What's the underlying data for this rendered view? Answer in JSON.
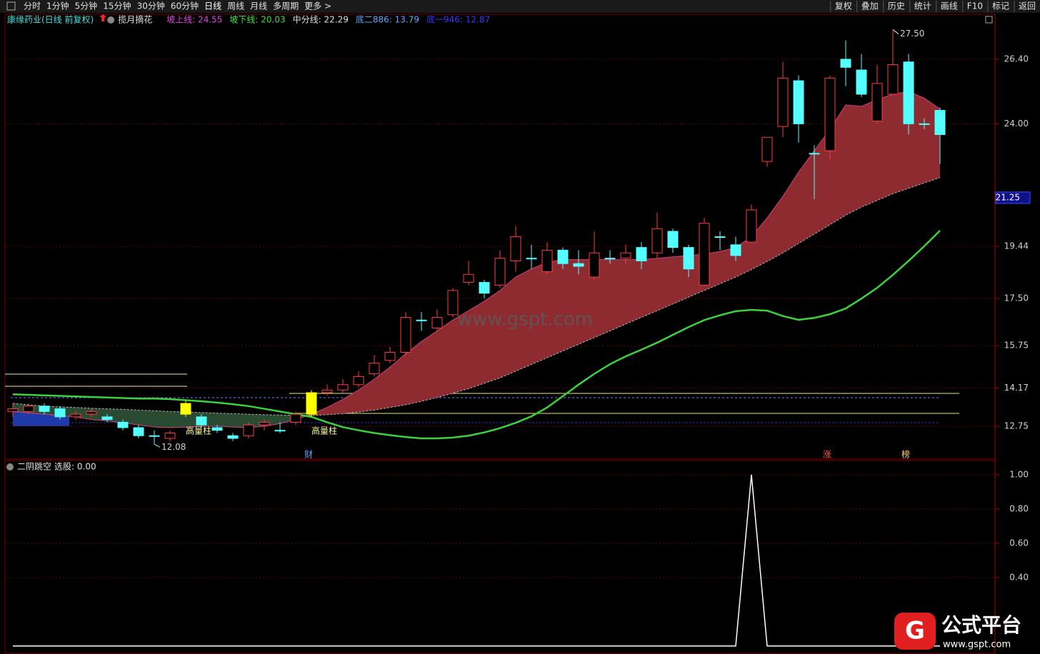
{
  "toolbar": {
    "left": [
      "分时",
      "1分钟",
      "5分钟",
      "15分钟",
      "30分钟",
      "60分钟",
      "日线",
      "周线",
      "月线",
      "多周期",
      "更多 >"
    ],
    "right": [
      "复权",
      "叠加",
      "历史",
      "统计",
      "画线",
      "F10",
      "标记",
      "返回"
    ]
  },
  "header": {
    "stock": "康缘药业(日线 前复权)",
    "formula": "揽月摘花",
    "readouts": [
      {
        "text": "坡上线: 24.55",
        "color": "#e040e0"
      },
      {
        "text": "坡下线: 20.03",
        "color": "#40e040"
      },
      {
        "text": "中分线: 22.29",
        "color": "#e0e0e0"
      },
      {
        "text": "底二886: 13.79",
        "color": "#60a8ff"
      },
      {
        "text": "底一946: 12.87",
        "color": "#3838ff"
      }
    ]
  },
  "watermark": "www.gspt.com",
  "logo": {
    "title": "公式平台",
    "url": "www.gspt.com"
  },
  "chart_data": [
    {
      "type": "candlestick",
      "up_color": "#ff3c3c",
      "down_color": "#54ffff",
      "highlight_color": "#ffff00",
      "band_colors": {
        "up": "#8e2b30",
        "down": "#2b4a32"
      },
      "open": [
        13.3,
        13.3,
        13.5,
        13.4,
        13.1,
        13.2,
        13.1,
        12.9,
        12.7,
        12.4,
        12.3,
        13.2,
        13.1,
        12.7,
        12.4,
        12.4,
        12.8,
        12.6,
        12.9,
        13.2,
        14.0,
        14.1,
        14.3,
        14.7,
        15.2,
        15.5,
        16.7,
        16.4,
        16.9,
        18.1,
        18.1,
        18.0,
        18.9,
        19.0,
        18.5,
        19.3,
        18.8,
        18.3,
        19.0,
        19.0,
        19.4,
        19.2,
        20.0,
        19.4,
        18.0,
        19.8,
        19.5,
        19.6,
        22.6,
        23.9,
        25.6,
        22.9,
        23.0,
        26.4,
        26.0,
        24.1,
        25.1,
        26.3,
        24.0,
        24.5
      ],
      "close": [
        13.4,
        13.5,
        13.3,
        13.1,
        13.2,
        13.3,
        13.0,
        12.7,
        12.4,
        12.4,
        12.5,
        13.6,
        12.8,
        12.6,
        12.3,
        12.8,
        12.9,
        12.6,
        13.2,
        14.0,
        14.1,
        14.3,
        14.6,
        15.1,
        15.5,
        16.8,
        16.7,
        16.8,
        17.8,
        18.4,
        17.7,
        19.0,
        19.8,
        19.0,
        19.3,
        18.8,
        18.7,
        19.2,
        19.0,
        19.2,
        18.9,
        20.1,
        19.4,
        18.6,
        20.3,
        19.8,
        19.1,
        20.8,
        23.5,
        25.7,
        24.0,
        22.9,
        25.7,
        26.1,
        25.1,
        25.5,
        26.2,
        24.0,
        24.0,
        23.6
      ],
      "high": [
        13.6,
        13.6,
        13.6,
        13.5,
        13.3,
        13.4,
        13.2,
        13.0,
        12.8,
        12.6,
        12.6,
        13.7,
        13.2,
        12.8,
        12.5,
        12.9,
        13.0,
        12.9,
        13.3,
        14.1,
        14.3,
        14.5,
        14.8,
        15.4,
        15.7,
        17.0,
        17.0,
        17.1,
        17.9,
        18.9,
        18.2,
        19.3,
        20.2,
        19.5,
        19.6,
        19.4,
        19.3,
        20.0,
        19.3,
        19.5,
        19.6,
        20.7,
        20.1,
        19.5,
        20.5,
        20.0,
        19.8,
        21.0,
        23.5,
        26.3,
        25.8,
        23.2,
        25.8,
        27.1,
        26.6,
        26.2,
        27.5,
        26.6,
        24.2,
        24.6
      ],
      "low": [
        13.1,
        13.2,
        13.2,
        13.0,
        13.0,
        13.1,
        12.9,
        12.6,
        12.3,
        12.08,
        12.2,
        13.1,
        12.7,
        12.5,
        12.2,
        12.3,
        12.6,
        12.5,
        12.8,
        13.1,
        13.9,
        14.0,
        14.2,
        14.6,
        15.1,
        15.4,
        16.3,
        16.3,
        16.8,
        18.0,
        17.5,
        17.9,
        18.5,
        18.6,
        18.4,
        18.6,
        18.4,
        18.2,
        18.8,
        18.8,
        18.6,
        19.0,
        19.2,
        18.3,
        18.0,
        19.3,
        18.9,
        19.6,
        22.4,
        23.5,
        23.3,
        21.2,
        22.7,
        25.4,
        25.0,
        24.0,
        25.1,
        23.6,
        23.8,
        22.5
      ],
      "series": [
        {
          "color": "#d04080",
          "values": [
            13.3,
            13.25,
            13.2,
            13.15,
            13.1,
            13.0,
            12.95,
            12.88,
            12.8,
            12.72,
            12.7,
            12.72,
            12.75,
            12.75,
            12.72,
            12.7,
            12.75,
            12.85,
            13.0,
            13.2,
            13.45,
            13.75,
            14.1,
            14.5,
            14.95,
            15.45,
            15.9,
            16.3,
            16.7,
            17.05,
            17.4,
            17.8,
            18.3,
            18.6,
            18.85,
            18.95,
            18.95,
            18.95,
            18.95,
            18.95,
            18.95,
            19.0,
            19.05,
            19.1,
            19.15,
            19.25,
            19.4,
            19.8,
            20.5,
            21.3,
            22.2,
            23.0,
            23.8,
            24.7,
            24.65,
            24.9,
            25.1,
            25.2,
            24.95,
            24.55
          ]
        },
        {
          "color": "#b0b0b0",
          "values": [
            13.6,
            13.55,
            13.5,
            13.47,
            13.45,
            13.42,
            13.4,
            13.38,
            13.35,
            13.33,
            13.3,
            13.28,
            13.26,
            13.24,
            13.22,
            13.2,
            13.18,
            13.17,
            13.16,
            13.15,
            13.18,
            13.22,
            13.28,
            13.35,
            13.45,
            13.55,
            13.68,
            13.82,
            13.98,
            14.15,
            14.35,
            14.55,
            14.8,
            15.05,
            15.3,
            15.55,
            15.8,
            16.05,
            16.3,
            16.55,
            16.8,
            17.05,
            17.3,
            17.55,
            17.8,
            18.05,
            18.3,
            18.58,
            18.88,
            19.2,
            19.55,
            19.9,
            20.25,
            20.6,
            20.9,
            21.15,
            21.4,
            21.6,
            21.8,
            22.0
          ]
        },
        {
          "color": "#3cd23c",
          "values": [
            13.94,
            13.92,
            13.9,
            13.88,
            13.86,
            13.84,
            13.82,
            13.8,
            13.78,
            13.78,
            13.76,
            13.72,
            13.68,
            13.63,
            13.57,
            13.5,
            13.4,
            13.3,
            13.2,
            13.1,
            12.9,
            12.72,
            12.6,
            12.5,
            12.42,
            12.35,
            12.3,
            12.3,
            12.33,
            12.4,
            12.52,
            12.68,
            12.88,
            13.12,
            13.45,
            13.87,
            14.3,
            14.7,
            15.06,
            15.35,
            15.6,
            15.86,
            16.15,
            16.44,
            16.7,
            16.88,
            17.03,
            17.08,
            17.05,
            16.85,
            16.71,
            16.78,
            16.92,
            17.13,
            17.5,
            17.9,
            18.38,
            18.9,
            19.45,
            20.03
          ]
        }
      ],
      "annotations": [
        {
          "index": 11,
          "text": "高量柱"
        },
        {
          "index": 19,
          "text": "高量柱"
        }
      ],
      "extreme_labels": [
        {
          "index": 56,
          "value": 27.5,
          "label": "27.50"
        },
        {
          "index": 9,
          "value": 12.08,
          "label": "12.08"
        }
      ],
      "events": [
        {
          "index": 19,
          "text": "财",
          "color": "#60a8ff"
        },
        {
          "index": 52,
          "text": "涨",
          "color": "#ff5050"
        },
        {
          "index": 57,
          "text": "榜",
          "color": "#ffd070"
        }
      ],
      "crosshair_price": 21.25,
      "ylim": [
        11.53,
        28.02
      ],
      "yticks": [
        {
          "value": 26.4,
          "label": "26.40"
        },
        {
          "value": 24,
          "label": "24.00"
        },
        19.44,
        {
          "value": 17.5,
          "label": "17.50"
        },
        15.75,
        14.17,
        12.75
      ]
    },
    {
      "type": "line",
      "title": "二阴跳空",
      "readout": "选股: 0.00",
      "color": "#ffffff",
      "values": [
        0,
        0,
        0,
        0,
        0,
        0,
        0,
        0,
        0,
        0,
        0,
        0,
        0,
        0,
        0,
        0,
        0,
        0,
        0,
        0,
        0,
        0,
        0,
        0,
        0,
        0,
        0,
        0,
        0,
        0,
        0,
        0,
        0,
        0,
        0,
        0,
        0,
        0,
        0,
        0,
        0,
        0,
        0,
        0,
        0,
        0,
        0,
        1,
        0,
        0,
        0,
        0,
        0,
        0,
        0,
        0,
        0,
        0,
        0,
        0
      ],
      "ylim": [
        -0.03,
        1.07
      ],
      "yticks": [
        {
          "value": 1,
          "label": "1.00"
        },
        {
          "value": 0.8,
          "label": "0.80"
        },
        {
          "value": 0.6,
          "label": "0.60"
        },
        {
          "value": 0.4,
          "label": "0.40"
        }
      ]
    }
  ]
}
